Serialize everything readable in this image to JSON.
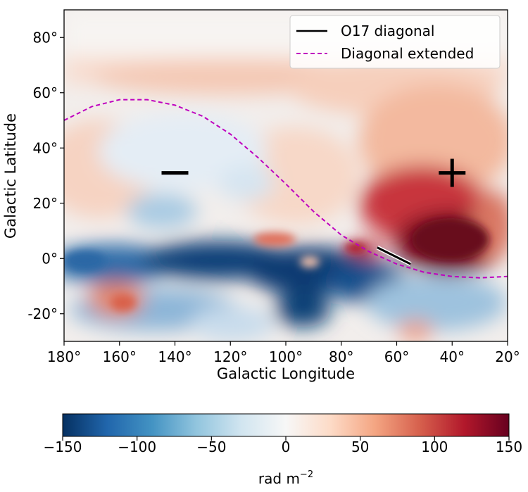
{
  "chart_data": {
    "type": "heatmap",
    "xlabel": "Galactic Longitude",
    "ylabel": "Galactic Latitude",
    "xlim": [
      180,
      20
    ],
    "ylim": [
      -30,
      90
    ],
    "x_ticks": [
      180,
      160,
      140,
      120,
      100,
      80,
      60,
      40,
      20
    ],
    "y_ticks": [
      -20,
      0,
      20,
      40,
      60,
      80
    ],
    "x_tick_labels": [
      "180°",
      "160°",
      "140°",
      "120°",
      "100°",
      "80°",
      "60°",
      "40°",
      "20°"
    ],
    "y_tick_labels": [
      "-20°",
      "0°",
      "20°",
      "40°",
      "60°",
      "80°"
    ],
    "colormap": "RdBu_r",
    "colorbar": {
      "range": [
        -150,
        150
      ],
      "ticks": [
        -150,
        -100,
        -50,
        0,
        50,
        100,
        150
      ],
      "tick_labels": [
        "−150",
        "−100",
        "−50",
        "0",
        "50",
        "100",
        "150"
      ],
      "unit_label": "rad m",
      "unit_exponent": "−2",
      "colors": [
        "#053061",
        "#2166ac",
        "#4393c3",
        "#92c5de",
        "#d1e5f0",
        "#f7f7f7",
        "#fddbc7",
        "#f4a582",
        "#d6604d",
        "#b2182b",
        "#67001f"
      ]
    },
    "series": [
      {
        "name": "O17 diagonal",
        "style": "solid",
        "color": "#000000",
        "x": [
          67,
          55
        ],
        "y": [
          4,
          -2
        ]
      },
      {
        "name": "Diagonal extended",
        "style": "dashed",
        "color": "#bf00bf",
        "x": [
          180,
          170,
          160,
          150,
          140,
          130,
          120,
          110,
          100,
          90,
          80,
          70,
          60,
          50,
          40,
          30,
          20
        ],
        "y": [
          50,
          55,
          57.5,
          57.5,
          55.5,
          51.5,
          45,
          36.5,
          27,
          17,
          8.5,
          2.5,
          -2,
          -5,
          -6.5,
          -7,
          -6.5
        ]
      }
    ],
    "annotations": [
      {
        "text": "−",
        "x": 140,
        "y": 31
      },
      {
        "text": "+",
        "x": 40,
        "y": 31
      }
    ],
    "legend_position": "top-right",
    "grid": false
  }
}
